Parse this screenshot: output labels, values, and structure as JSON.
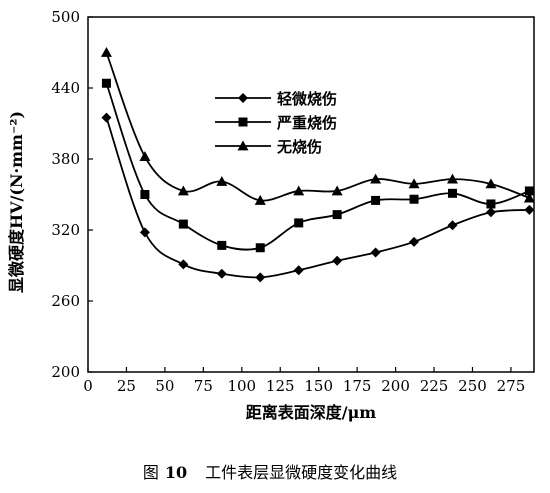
{
  "chart_data": {
    "type": "line",
    "xlabel": "距离表面深度/μm",
    "ylabel": "显微硬度HV/(N·mm⁻²)",
    "xlim": [
      0,
      290
    ],
    "ylim": [
      200,
      500
    ],
    "x_ticks": [
      0,
      25,
      50,
      75,
      100,
      125,
      150,
      175,
      200,
      225,
      250,
      275
    ],
    "y_ticks": [
      200,
      260,
      320,
      380,
      440,
      500
    ],
    "x": [
      12,
      37,
      62,
      87,
      112,
      137,
      162,
      187,
      212,
      237,
      262,
      287
    ],
    "series": [
      {
        "name": "轻微烧伤",
        "marker": "diamond",
        "values": [
          415,
          318,
          291,
          283,
          280,
          286,
          294,
          301,
          310,
          324,
          335,
          337
        ]
      },
      {
        "name": "严重烧伤",
        "marker": "square",
        "values": [
          444,
          350,
          325,
          307,
          305,
          326,
          333,
          345,
          346,
          351,
          342,
          353
        ]
      },
      {
        "name": "无烧伤",
        "marker": "triangle",
        "values": [
          470,
          382,
          353,
          361,
          345,
          353,
          353,
          363,
          359,
          363,
          359,
          347
        ]
      }
    ],
    "grid": false,
    "legend_position": "top-right"
  },
  "caption": {
    "prefix": "图",
    "number": "10",
    "text": "工件表层显微硬度变化曲线"
  }
}
